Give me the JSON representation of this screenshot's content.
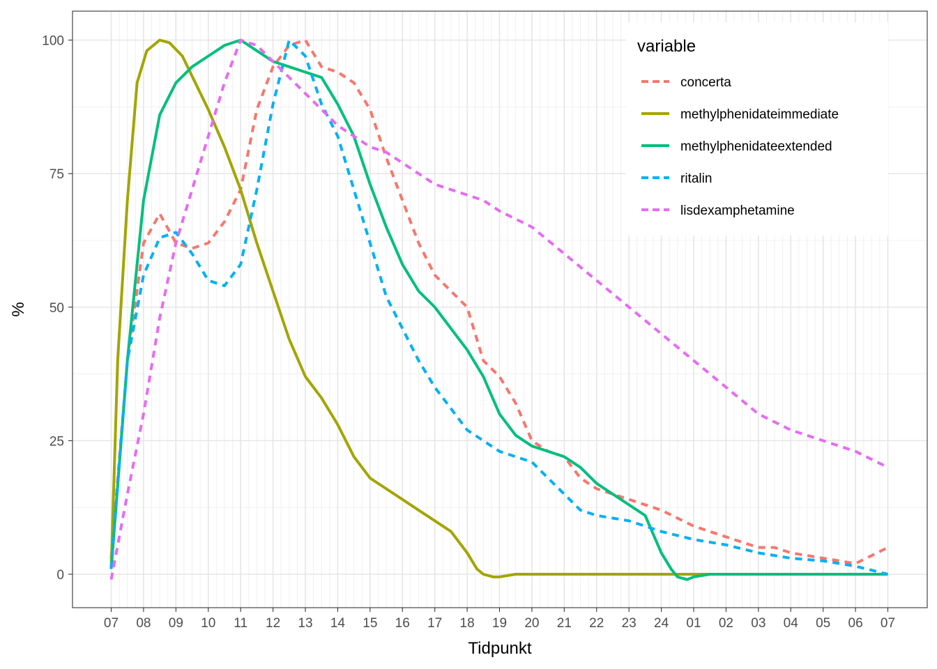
{
  "chart_data": {
    "type": "line",
    "xlabel": "Tidpunkt",
    "ylabel": "%",
    "x_tick_labels": [
      "07",
      "08",
      "09",
      "10",
      "11",
      "12",
      "13",
      "14",
      "15",
      "16",
      "17",
      "18",
      "19",
      "20",
      "21",
      "22",
      "23",
      "24",
      "01",
      "02",
      "03",
      "04",
      "05",
      "06",
      "07"
    ],
    "x_range_hours": [
      0,
      24
    ],
    "ylim": [
      -5,
      105
    ],
    "y_ticks": [
      0,
      25,
      50,
      75,
      100
    ],
    "grid": true,
    "legend": {
      "title": "variable",
      "position": "top-right (inside)"
    },
    "colors": {
      "concerta": "#F8766D",
      "methylphenidateimmediate": "#A3A500",
      "methylphenidateextended": "#00BF7D",
      "ritalin": "#00B0F6",
      "lisdexamphetamine": "#E76BF3"
    },
    "series": [
      {
        "name": "concerta",
        "dashed": true,
        "points": [
          [
            0,
            3
          ],
          [
            0.5,
            40
          ],
          [
            1,
            62
          ],
          [
            1.5,
            67.5
          ],
          [
            2,
            62
          ],
          [
            2.5,
            61
          ],
          [
            3,
            62
          ],
          [
            3.5,
            66
          ],
          [
            4,
            72
          ],
          [
            4.5,
            87
          ],
          [
            5,
            95
          ],
          [
            5.5,
            99
          ],
          [
            6,
            100
          ],
          [
            6.5,
            95
          ],
          [
            7,
            94
          ],
          [
            7.5,
            92
          ],
          [
            8,
            87
          ],
          [
            8.5,
            78
          ],
          [
            9,
            70
          ],
          [
            9.5,
            62
          ],
          [
            10,
            56
          ],
          [
            10.5,
            53
          ],
          [
            11,
            50
          ],
          [
            11.5,
            40
          ],
          [
            12,
            37
          ],
          [
            12.5,
            32
          ],
          [
            13,
            25
          ],
          [
            13.5,
            23
          ],
          [
            14,
            22
          ],
          [
            14.5,
            18
          ],
          [
            15,
            16
          ],
          [
            16,
            14
          ],
          [
            17,
            12
          ],
          [
            18,
            9
          ],
          [
            19,
            7
          ],
          [
            20,
            5
          ],
          [
            20.5,
            5
          ],
          [
            21,
            4
          ],
          [
            22,
            3
          ],
          [
            23,
            2
          ],
          [
            24,
            5
          ]
        ]
      },
      {
        "name": "methylphenidateimmediate",
        "dashed": false,
        "points": [
          [
            0,
            1
          ],
          [
            0.2,
            40
          ],
          [
            0.5,
            70
          ],
          [
            0.8,
            92
          ],
          [
            1.1,
            98
          ],
          [
            1.5,
            100
          ],
          [
            1.8,
            99.5
          ],
          [
            2.2,
            97
          ],
          [
            2.6,
            92
          ],
          [
            3,
            87
          ],
          [
            3.5,
            80
          ],
          [
            4,
            72
          ],
          [
            4.5,
            62
          ],
          [
            5,
            53
          ],
          [
            5.5,
            44
          ],
          [
            6,
            37
          ],
          [
            6.5,
            33
          ],
          [
            7,
            28
          ],
          [
            7.5,
            22
          ],
          [
            8,
            18
          ],
          [
            8.5,
            16
          ],
          [
            9,
            14
          ],
          [
            9.5,
            12
          ],
          [
            10,
            10
          ],
          [
            10.5,
            8
          ],
          [
            11,
            4
          ],
          [
            11.3,
            1
          ],
          [
            11.5,
            0
          ],
          [
            11.8,
            -0.5
          ],
          [
            12,
            -0.5
          ],
          [
            12.5,
            0
          ],
          [
            24,
            0
          ]
        ]
      },
      {
        "name": "methylphenidateextended",
        "dashed": false,
        "points": [
          [
            0,
            1
          ],
          [
            0.5,
            40
          ],
          [
            1,
            70
          ],
          [
            1.5,
            86
          ],
          [
            2,
            92
          ],
          [
            2.5,
            95
          ],
          [
            3,
            97
          ],
          [
            3.5,
            99
          ],
          [
            4,
            100
          ],
          [
            4.5,
            98
          ],
          [
            5,
            96
          ],
          [
            5.5,
            95
          ],
          [
            6,
            94
          ],
          [
            6.5,
            93
          ],
          [
            7,
            88
          ],
          [
            7.5,
            82
          ],
          [
            8,
            73
          ],
          [
            8.5,
            65
          ],
          [
            9,
            58
          ],
          [
            9.5,
            53
          ],
          [
            10,
            50
          ],
          [
            10.5,
            46
          ],
          [
            11,
            42
          ],
          [
            11.5,
            37
          ],
          [
            12,
            30
          ],
          [
            12.5,
            26
          ],
          [
            13,
            24
          ],
          [
            13.5,
            23
          ],
          [
            14,
            22
          ],
          [
            14.5,
            20
          ],
          [
            15,
            17
          ],
          [
            15.5,
            15
          ],
          [
            16,
            13
          ],
          [
            16.5,
            11
          ],
          [
            17,
            4
          ],
          [
            17.3,
            1
          ],
          [
            17.5,
            -0.5
          ],
          [
            17.8,
            -1
          ],
          [
            18,
            -0.5
          ],
          [
            18.5,
            0
          ],
          [
            24,
            0
          ]
        ]
      },
      {
        "name": "ritalin",
        "dashed": true,
        "points": [
          [
            0,
            1
          ],
          [
            0.5,
            40
          ],
          [
            1,
            56
          ],
          [
            1.5,
            63
          ],
          [
            2,
            64
          ],
          [
            2.5,
            60
          ],
          [
            3,
            55
          ],
          [
            3.5,
            54
          ],
          [
            4,
            58
          ],
          [
            4.5,
            72
          ],
          [
            5,
            88
          ],
          [
            5.5,
            100
          ],
          [
            6,
            97
          ],
          [
            6.5,
            88
          ],
          [
            7,
            82
          ],
          [
            7.5,
            72
          ],
          [
            8,
            62
          ],
          [
            8.5,
            52
          ],
          [
            9,
            46
          ],
          [
            9.5,
            40
          ],
          [
            10,
            35
          ],
          [
            10.5,
            31
          ],
          [
            11,
            27
          ],
          [
            11.5,
            25
          ],
          [
            12,
            23
          ],
          [
            12.5,
            22
          ],
          [
            13,
            21
          ],
          [
            13.5,
            18
          ],
          [
            14,
            15
          ],
          [
            14.5,
            12
          ],
          [
            15,
            11
          ],
          [
            16,
            10
          ],
          [
            17,
            8
          ],
          [
            18,
            6.5
          ],
          [
            19,
            5.5
          ],
          [
            20,
            4
          ],
          [
            21,
            3
          ],
          [
            22,
            2.5
          ],
          [
            23,
            1.5
          ],
          [
            24,
            0
          ]
        ]
      },
      {
        "name": "lisdexamphetamine",
        "dashed": true,
        "points": [
          [
            0,
            -1
          ],
          [
            0.5,
            15
          ],
          [
            1,
            30
          ],
          [
            1.5,
            48
          ],
          [
            2,
            62
          ],
          [
            2.5,
            72
          ],
          [
            3,
            82
          ],
          [
            3.5,
            92
          ],
          [
            4,
            100
          ],
          [
            4.5,
            99
          ],
          [
            5,
            96
          ],
          [
            5.5,
            93
          ],
          [
            6,
            90
          ],
          [
            6.5,
            87
          ],
          [
            7,
            84
          ],
          [
            7.5,
            82
          ],
          [
            8,
            80
          ],
          [
            8.5,
            79
          ],
          [
            9,
            77
          ],
          [
            9.5,
            75
          ],
          [
            10,
            73
          ],
          [
            10.5,
            72
          ],
          [
            11,
            71
          ],
          [
            11.5,
            70
          ],
          [
            12,
            68
          ],
          [
            13,
            65
          ],
          [
            14,
            60
          ],
          [
            15,
            55
          ],
          [
            16,
            50
          ],
          [
            17,
            45
          ],
          [
            18,
            40
          ],
          [
            19,
            35
          ],
          [
            20,
            30
          ],
          [
            21,
            27
          ],
          [
            22,
            25
          ],
          [
            23,
            23
          ],
          [
            24,
            20
          ]
        ]
      }
    ]
  }
}
